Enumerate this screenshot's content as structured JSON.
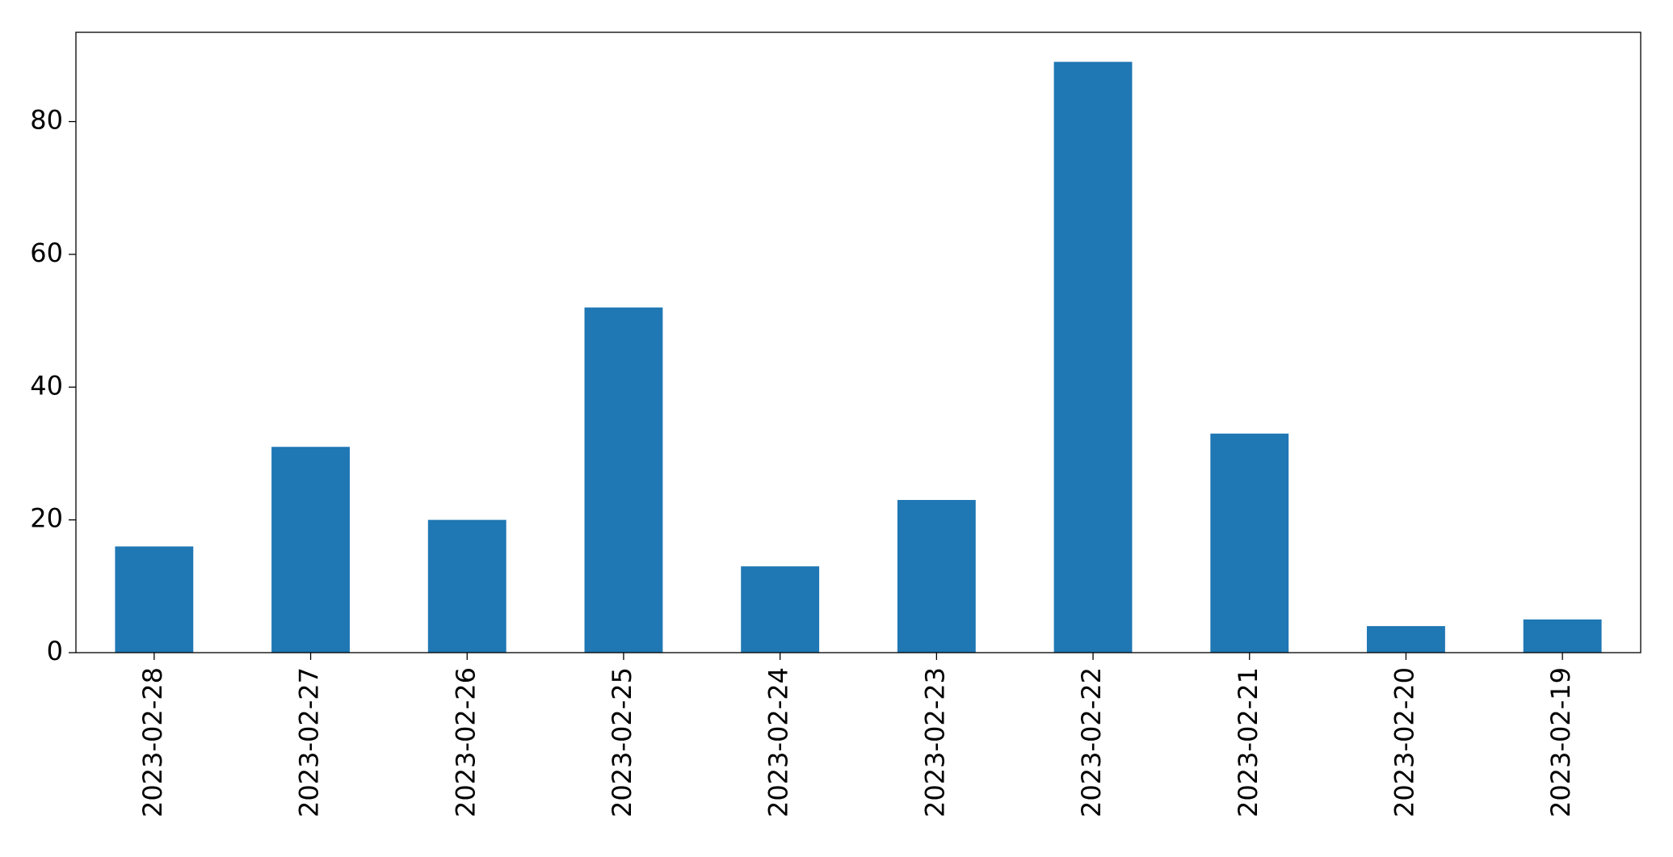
{
  "chart_data": {
    "type": "bar",
    "categories": [
      "2023-02-28",
      "2023-02-27",
      "2023-02-26",
      "2023-02-25",
      "2023-02-24",
      "2023-02-23",
      "2023-02-22",
      "2023-02-21",
      "2023-02-20",
      "2023-02-19"
    ],
    "values": [
      16,
      31,
      20,
      52,
      13,
      23,
      89,
      33,
      4,
      5
    ],
    "color": "#1f77b4",
    "ylim": [
      0,
      93.45
    ],
    "yticks": [
      0,
      20,
      40,
      60,
      80
    ],
    "grid": false
  }
}
